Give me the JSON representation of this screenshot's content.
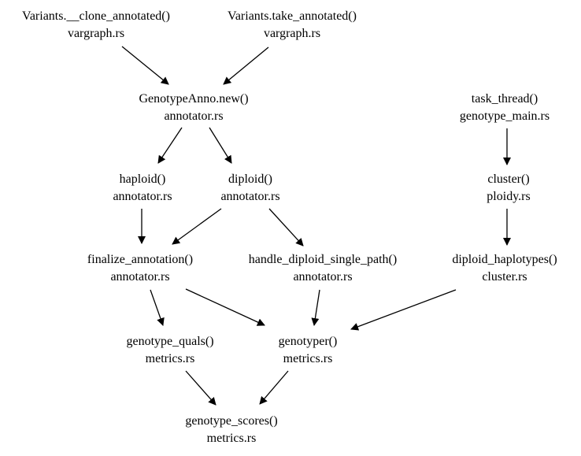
{
  "colors": {
    "background": "#ffffff",
    "text": "#000000",
    "edge": "#000000"
  },
  "nodes": [
    {
      "id": "clone_annotated",
      "function": "Variants.__clone_annotated()",
      "file": "vargraph.rs"
    },
    {
      "id": "take_annotated",
      "function": "Variants.take_annotated()",
      "file": "vargraph.rs"
    },
    {
      "id": "genotype_anno_new",
      "function": "GenotypeAnno.new()",
      "file": "annotator.rs"
    },
    {
      "id": "task_thread",
      "function": "task_thread()",
      "file": "genotype_main.rs"
    },
    {
      "id": "haploid",
      "function": "haploid()",
      "file": "annotator.rs"
    },
    {
      "id": "diploid",
      "function": "diploid()",
      "file": "annotator.rs"
    },
    {
      "id": "cluster",
      "function": "cluster()",
      "file": "ploidy.rs"
    },
    {
      "id": "finalize_annotation",
      "function": "finalize_annotation()",
      "file": "annotator.rs"
    },
    {
      "id": "handle_diploid_single_path",
      "function": "handle_diploid_single_path()",
      "file": "annotator.rs"
    },
    {
      "id": "diploid_haplotypes",
      "function": "diploid_haplotypes()",
      "file": "cluster.rs"
    },
    {
      "id": "genotype_quals",
      "function": "genotype_quals()",
      "file": "metrics.rs"
    },
    {
      "id": "genotyper",
      "function": "genotyper()",
      "file": "metrics.rs"
    },
    {
      "id": "genotype_scores",
      "function": "genotype_scores()",
      "file": "metrics.rs"
    }
  ],
  "edges": [
    {
      "from": "clone_annotated",
      "to": "genotype_anno_new"
    },
    {
      "from": "take_annotated",
      "to": "genotype_anno_new"
    },
    {
      "from": "genotype_anno_new",
      "to": "haploid"
    },
    {
      "from": "genotype_anno_new",
      "to": "diploid"
    },
    {
      "from": "task_thread",
      "to": "cluster"
    },
    {
      "from": "haploid",
      "to": "finalize_annotation"
    },
    {
      "from": "diploid",
      "to": "finalize_annotation"
    },
    {
      "from": "diploid",
      "to": "handle_diploid_single_path"
    },
    {
      "from": "cluster",
      "to": "diploid_haplotypes"
    },
    {
      "from": "finalize_annotation",
      "to": "genotype_quals"
    },
    {
      "from": "finalize_annotation",
      "to": "genotyper"
    },
    {
      "from": "handle_diploid_single_path",
      "to": "genotyper"
    },
    {
      "from": "diploid_haplotypes",
      "to": "genotyper"
    },
    {
      "from": "genotype_quals",
      "to": "genotype_scores"
    },
    {
      "from": "genotyper",
      "to": "genotype_scores"
    }
  ]
}
